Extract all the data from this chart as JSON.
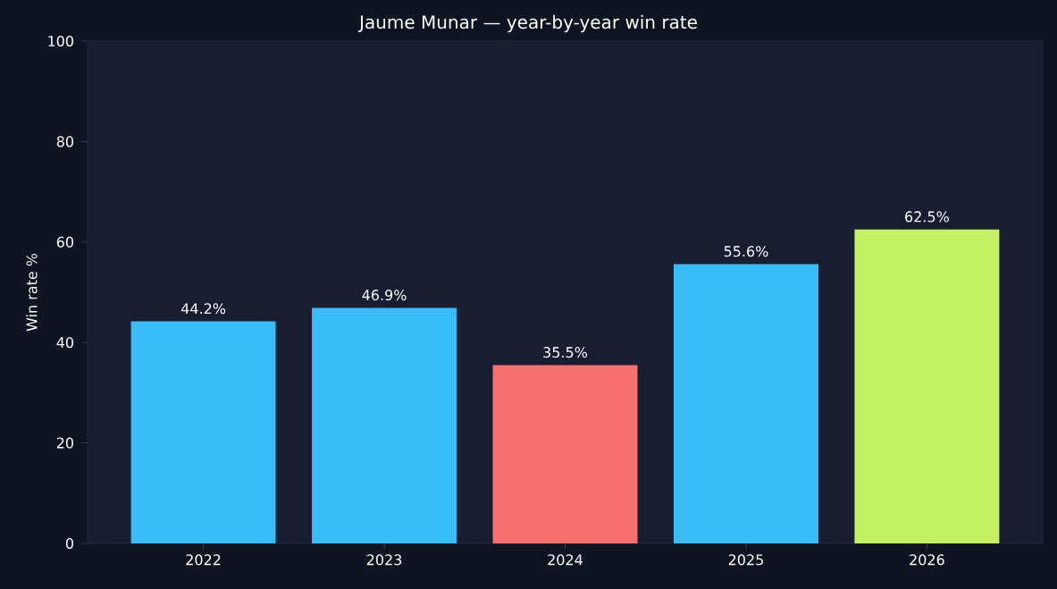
{
  "chart_data": {
    "type": "bar",
    "title": "Jaume Munar — year-by-year win rate",
    "ylabel": "Win rate %",
    "categories": [
      "2022",
      "2023",
      "2024",
      "2025",
      "2026"
    ],
    "values": [
      44.2,
      46.9,
      35.5,
      55.6,
      62.5
    ],
    "colors": [
      "#38bdf8",
      "#38bdf8",
      "#f87171",
      "#38bdf8",
      "#c4f064"
    ],
    "value_labels": [
      "44.2%",
      "46.9%",
      "35.5%",
      "55.6%",
      "62.5%"
    ],
    "ylim": [
      0,
      100
    ],
    "yticks": [
      0,
      20,
      40,
      60,
      80,
      100
    ],
    "grid": false
  }
}
